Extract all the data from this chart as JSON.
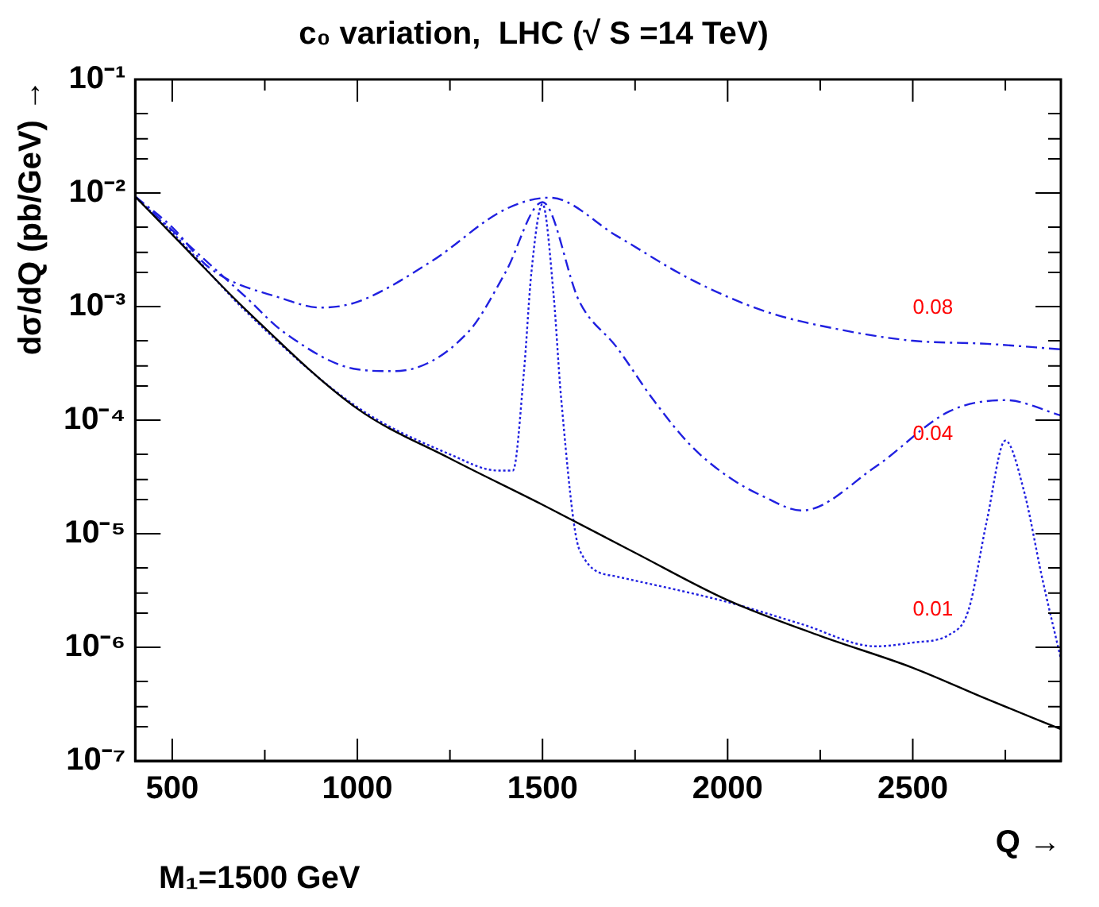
{
  "chart_data": {
    "type": "line",
    "title": "c₀ variation,  LHC (√ S =14 TeV)",
    "xlabel": "Q →",
    "ylabel": "dσ/dQ (pb/GeV) →",
    "log": "y",
    "grid": false,
    "legend": false,
    "marker": "none",
    "xlim": [
      400,
      2900
    ],
    "xticks": [
      500,
      {
        "value": 750,
        "label": null
      },
      1000,
      {
        "value": 1250,
        "label": null
      },
      1500,
      {
        "value": 1750,
        "label": null
      },
      2000,
      {
        "value": 2250,
        "label": null
      },
      2500,
      {
        "value": 2750,
        "label": null
      }
    ],
    "ylim": [
      1e-07,
      0.1
    ],
    "yticks": [
      {
        "value": 1e-07,
        "label": "10⁻⁷"
      },
      {
        "value": 2e-07,
        "label": null
      },
      {
        "value": 3e-07,
        "label": null
      },
      {
        "value": 5e-07,
        "label": null
      },
      {
        "value": 1e-06,
        "label": "10⁻⁶"
      },
      {
        "value": 2e-06,
        "label": null
      },
      {
        "value": 3e-06,
        "label": null
      },
      {
        "value": 5e-06,
        "label": null
      },
      {
        "value": 1e-05,
        "label": "10⁻⁵"
      },
      {
        "value": 2e-05,
        "label": null
      },
      {
        "value": 3e-05,
        "label": null
      },
      {
        "value": 5e-05,
        "label": null
      },
      {
        "value": 0.0001,
        "label": "10⁻⁴"
      },
      {
        "value": 0.0002,
        "label": null
      },
      {
        "value": 0.0003,
        "label": null
      },
      {
        "value": 0.0005,
        "label": null
      },
      {
        "value": 0.001,
        "label": "10⁻³"
      },
      {
        "value": 0.002,
        "label": null
      },
      {
        "value": 0.003,
        "label": null
      },
      {
        "value": 0.005,
        "label": null
      },
      {
        "value": 0.01,
        "label": "10⁻²"
      },
      {
        "value": 0.02,
        "label": null
      },
      {
        "value": 0.03,
        "label": null
      },
      {
        "value": 0.05,
        "label": null
      },
      {
        "value": 0.1,
        "label": "10⁻¹"
      }
    ],
    "series": [
      {
        "color": "#000000",
        "line_style": "solid",
        "x": [
          400,
          500,
          700,
          1000,
          1250,
          1500,
          1750,
          2000,
          2250,
          2500,
          2700,
          2900
        ],
        "values": [
          0.0093,
          0.0043,
          0.00093,
          0.000126,
          4.6e-05,
          1.8e-05,
          6.8e-06,
          2.6e-06,
          1.26e-06,
          6.6e-07,
          3.5e-07,
          1.9e-07
        ]
      },
      {
        "name": "0.08",
        "color": "#2020e0",
        "line_style": "dashed",
        "x": [
          400,
          500,
          600,
          800,
          900,
          1000,
          1200,
          1400,
          1520,
          1700,
          1900,
          2100,
          2300,
          2500,
          2700,
          2900
        ],
        "values": [
          0.0093,
          0.005,
          0.0022,
          0.00117,
          0.00098,
          0.0011,
          0.0025,
          0.0072,
          0.0091,
          0.0042,
          0.00174,
          0.00091,
          0.00063,
          0.0005,
          0.00047,
          0.00042
        ]
      },
      {
        "name": "0.04",
        "color": "#2020e0",
        "line_style": "dashed",
        "x": [
          400,
          500,
          700,
          800,
          1000,
          1100,
          1300,
          1400,
          1500,
          1600,
          1700,
          1800,
          1900,
          2000,
          2100,
          2200,
          2400,
          2600,
          2750,
          2900
        ],
        "values": [
          0.0093,
          0.0047,
          0.0012,
          0.0006,
          0.00028,
          0.00027,
          0.0006,
          0.002,
          0.0083,
          0.0011,
          0.00044,
          0.00015,
          6e-05,
          3.2e-05,
          2.1e-05,
          1.6e-05,
          3.9e-05,
          0.00012,
          0.00015,
          0.00011
        ]
      },
      {
        "name": "0.01",
        "color": "#2020e0",
        "line_style": "dotted",
        "x": [
          400,
          500,
          700,
          1000,
          1250,
          1380,
          1420,
          1450,
          1470,
          1500,
          1530,
          1550,
          1600,
          1700,
          2000,
          2200,
          2400,
          2500,
          2600,
          2650,
          2700,
          2750,
          2800,
          2850,
          2900
        ],
        "values": [
          0.0093,
          0.0045,
          0.0009,
          0.00013,
          5e-05,
          3.6e-05,
          3.6e-05,
          0.00027,
          0.002,
          0.008,
          0.00126,
          0.00016,
          7.2e-06,
          4.2e-06,
          2.5e-06,
          1.6e-06,
          1.02e-06,
          1.1e-06,
          1.3e-06,
          2.1e-06,
          1.3e-05,
          6.6e-05,
          2.4e-05,
          4e-06,
          7.9e-07
        ]
      }
    ],
    "annotations": [
      "M₁=1500 GeV"
    ]
  }
}
